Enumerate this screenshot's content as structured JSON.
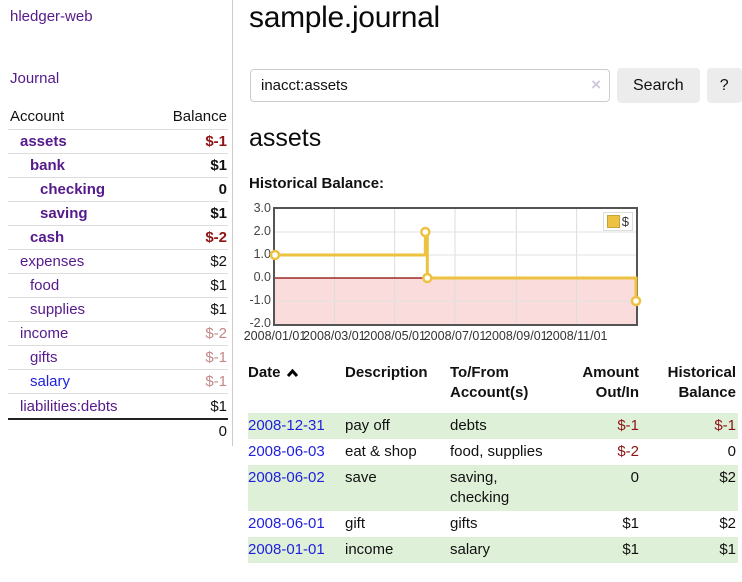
{
  "colors": {
    "purple_link": "#551A8B",
    "blue_link": "#2121DC",
    "negative_strong": "#8e1515",
    "negative_muted": "#c48888",
    "row_stripe_green": "#dff0d8",
    "chart_line_gold": "#EDC240",
    "chart_negative_fill": "#fbdcdc",
    "chart_zero_line": "#8b0000",
    "chart_border": "#545454",
    "button_bg": "#ececec"
  },
  "sidebar": {
    "brand": "hledger-web",
    "nav": {
      "journal": "Journal"
    },
    "header": {
      "account": "Account",
      "balance": "Balance"
    },
    "accounts": [
      {
        "name": "assets",
        "balance": "$-1"
      },
      {
        "name": "bank",
        "balance": "$1"
      },
      {
        "name": "checking",
        "balance": "0"
      },
      {
        "name": "saving",
        "balance": "$1"
      },
      {
        "name": "cash",
        "balance": "$-2"
      },
      {
        "name": "expenses",
        "balance": "$2"
      },
      {
        "name": "food",
        "balance": "$1"
      },
      {
        "name": "supplies",
        "balance": "$1"
      },
      {
        "name": "income",
        "balance": "$-2"
      },
      {
        "name": "gifts",
        "balance": "$-1"
      },
      {
        "name": "salary",
        "balance": "$-1"
      },
      {
        "name": "liabilities:debts",
        "balance": "$1"
      }
    ],
    "total": "0"
  },
  "main": {
    "title": "sample.journal",
    "search": {
      "value": "inacct:assets",
      "clear_icon": "×",
      "button": "Search",
      "help": "?"
    },
    "heading": "assets",
    "chart_label": "Historical Balance:"
  },
  "register": {
    "headers": {
      "date": "Date",
      "description": "Description",
      "tofrom": "To/From Account(s)",
      "amount": "Amount Out/In",
      "balance": "Historical Balance"
    },
    "rows": [
      {
        "date": "2008-12-31",
        "description": "pay off",
        "tofrom": "debts",
        "amount": "$-1",
        "balance": "$-1"
      },
      {
        "date": "2008-06-03",
        "description": "eat & shop",
        "tofrom": "food, supplies",
        "amount": "$-2",
        "balance": "0"
      },
      {
        "date": "2008-06-02",
        "description": "save",
        "tofrom": "saving,\nchecking",
        "amount": "0",
        "balance": "$2"
      },
      {
        "date": "2008-06-01",
        "description": "gift",
        "tofrom": "gifts",
        "amount": "$1",
        "balance": "$2"
      },
      {
        "date": "2008-01-01",
        "description": "income",
        "tofrom": "salary",
        "amount": "$1",
        "balance": "$1"
      }
    ]
  },
  "chart_data": {
    "type": "line",
    "title": "Historical Balance",
    "step": true,
    "series": [
      {
        "name": "$",
        "color": "#EDC240",
        "points": [
          [
            "2008-01-01",
            1
          ],
          [
            "2008-06-01",
            2
          ],
          [
            "2008-06-03",
            0
          ],
          [
            "2008-12-31",
            -1
          ]
        ]
      }
    ],
    "xlim": [
      "2008-01-01",
      "2008-12-31"
    ],
    "ylim": [
      -2,
      3
    ],
    "x_ticks": [
      "2008/01/01",
      "2008/03/01",
      "2008/05/01",
      "2008/07/01",
      "2008/09/01",
      "2008/11/01"
    ],
    "y_ticks": [
      "3.0",
      "2.0",
      "1.0",
      "0.0",
      "-1.0",
      "-2.0"
    ],
    "grid": true,
    "legend_position": "top-right",
    "negative_region_color": "#fbdcdc",
    "zero_line_color": "#8b0000"
  }
}
